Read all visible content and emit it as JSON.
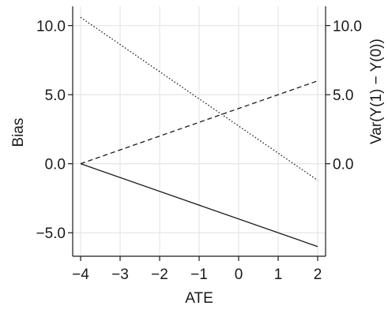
{
  "chart_data": {
    "type": "line",
    "xlabel": "ATE",
    "ylabel": "Bias",
    "ylabel_right": "Var(Y(1) − Y(0))",
    "xlim": [
      -4.2,
      2.2
    ],
    "ylim": [
      -6.7,
      11.4
    ],
    "x_ticks": [
      -4,
      -3,
      -2,
      -1,
      0,
      1,
      2
    ],
    "x_tick_labels": [
      "−4",
      "−3",
      "−2",
      "−1",
      "0",
      "1",
      "2"
    ],
    "y_ticks": [
      -5,
      0,
      5,
      10
    ],
    "y_tick_labels": [
      "−5.0",
      "0.0",
      "5.0",
      "10.0"
    ],
    "y_right_ticks": [
      0,
      5,
      10
    ],
    "y_right_tick_labels": [
      "0.0",
      "5.0",
      "10.0"
    ],
    "grid": true,
    "series": [
      {
        "style": "solid",
        "x": [
          -4,
          2
        ],
        "y": [
          0.0,
          -6.0
        ]
      },
      {
        "style": "dashed",
        "x": [
          -4,
          2
        ],
        "y": [
          0.0,
          6.0
        ]
      },
      {
        "style": "dotted",
        "x": [
          -4,
          2
        ],
        "y": [
          10.6,
          -1.2
        ]
      }
    ],
    "colors": {
      "line": "#1a1a1a",
      "grid": "#e6e6e6",
      "axis": "#1a1a1a"
    }
  }
}
